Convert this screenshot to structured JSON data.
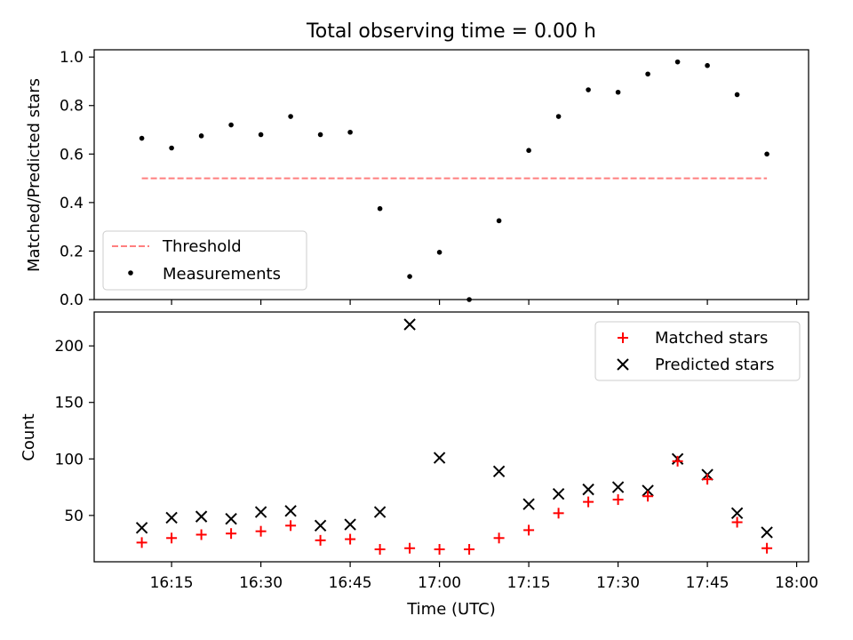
{
  "chart_data": [
    {
      "type": "scatter",
      "title": "Total observing time = 0.00 h",
      "xlabel": "",
      "ylabel": "Matched/Predicted stars",
      "ylim": [
        0,
        1.03
      ],
      "yticks": [
        "0.0",
        "0.2",
        "0.4",
        "0.6",
        "0.8",
        "1.0"
      ],
      "x_range_minutes": [
        "16:02",
        "18:02"
      ],
      "legend_position": "lower-left",
      "threshold": {
        "name": "Threshold",
        "value": 0.5,
        "x_start": "16:10",
        "x_end": "17:55",
        "color": "#ff7f7f",
        "style": "dashed"
      },
      "series": [
        {
          "name": "Measurements",
          "color": "#000000",
          "marker": "dot",
          "x": [
            "16:10",
            "16:15",
            "16:20",
            "16:25",
            "16:30",
            "16:35",
            "16:40",
            "16:45",
            "16:50",
            "16:55",
            "17:00",
            "17:05",
            "17:10",
            "17:15",
            "17:20",
            "17:25",
            "17:30",
            "17:35",
            "17:40",
            "17:45",
            "17:50",
            "17:55"
          ],
          "y": [
            0.665,
            0.625,
            0.675,
            0.72,
            0.68,
            0.755,
            0.68,
            0.69,
            0.375,
            0.095,
            0.195,
            0.0,
            0.325,
            0.615,
            0.755,
            0.865,
            0.855,
            0.93,
            0.98,
            0.965,
            0.845,
            0.6
          ]
        }
      ]
    },
    {
      "type": "scatter",
      "title": "",
      "xlabel": "Time (UTC)",
      "ylabel": "Count",
      "ylim": [
        9,
        230
      ],
      "yticks": [
        "50",
        "100",
        "150",
        "200"
      ],
      "xticks": [
        "16:15",
        "16:30",
        "16:45",
        "17:00",
        "17:15",
        "17:30",
        "17:45",
        "18:00"
      ],
      "legend_position": "upper-right",
      "series": [
        {
          "name": "Matched stars",
          "color": "#ff0000",
          "marker": "plus",
          "x": [
            "16:10",
            "16:15",
            "16:20",
            "16:25",
            "16:30",
            "16:35",
            "16:40",
            "16:45",
            "16:50",
            "16:55",
            "17:00",
            "17:05",
            "17:10",
            "17:15",
            "17:20",
            "17:25",
            "17:30",
            "17:35",
            "17:40",
            "17:45",
            "17:50",
            "17:55"
          ],
          "y": [
            26,
            30,
            33,
            34,
            36,
            41,
            28,
            29,
            20,
            21,
            20,
            20,
            30,
            37,
            52,
            62,
            64,
            67,
            98,
            82,
            44,
            21
          ]
        },
        {
          "name": "Predicted stars",
          "color": "#000000",
          "marker": "x",
          "x": [
            "16:10",
            "16:15",
            "16:20",
            "16:25",
            "16:30",
            "16:35",
            "16:40",
            "16:45",
            "16:50",
            "16:55",
            "17:00",
            "17:05",
            "17:10",
            "17:15",
            "17:20",
            "17:25",
            "17:30",
            "17:35",
            "17:40",
            "17:45",
            "17:50",
            "17:55"
          ],
          "y": [
            39,
            48,
            49,
            47,
            53,
            54,
            41,
            42,
            53,
            219,
            101,
            null,
            89,
            60,
            69,
            73,
            75,
            72,
            100,
            86,
            52,
            35
          ]
        }
      ]
    }
  ]
}
